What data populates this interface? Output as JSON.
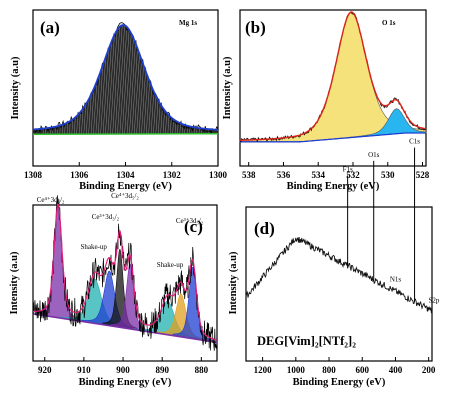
{
  "chart_data": [
    {
      "panel_label": "(a)",
      "type": "line",
      "title": "Mg 1s",
      "xlabel": "Binding Energy (eV)",
      "ylabel": "Intensity (a.u)",
      "xlim": [
        1308,
        1300
      ],
      "xticks": [
        1308,
        1306,
        1304,
        1302,
        1300
      ],
      "peak": {
        "center": 1304.1,
        "fwhm": 2.2,
        "fill": "#2a2a2a"
      },
      "background_color": "#2bbf2b",
      "fit_color": "#1f3fd0",
      "raw": [
        [
          1308.0,
          0.07
        ],
        [
          1307.5,
          0.09
        ],
        [
          1307.0,
          0.12
        ],
        [
          1306.6,
          0.17
        ],
        [
          1306.2,
          0.25
        ],
        [
          1305.8,
          0.37
        ],
        [
          1305.4,
          0.52
        ],
        [
          1305.0,
          0.72
        ],
        [
          1304.6,
          0.9
        ],
        [
          1304.1,
          1.0
        ],
        [
          1303.7,
          0.94
        ],
        [
          1303.3,
          0.77
        ],
        [
          1302.9,
          0.55
        ],
        [
          1302.5,
          0.35
        ],
        [
          1302.1,
          0.22
        ],
        [
          1301.6,
          0.13
        ],
        [
          1301.0,
          0.08
        ],
        [
          1300.4,
          0.06
        ],
        [
          1300.0,
          0.06
        ]
      ]
    },
    {
      "panel_label": "(b)",
      "type": "line",
      "title": "O 1s",
      "xlabel": "Binding Energy (eV)",
      "ylabel": "Intensity (a.u)",
      "xlim": [
        538.5,
        527.8
      ],
      "xticks": [
        538,
        536,
        534,
        532,
        530,
        528
      ],
      "peaks": [
        {
          "center": 532.1,
          "fwhm": 2.1,
          "height": 1.0,
          "color": "#f5e27a"
        },
        {
          "center": 529.5,
          "fwhm": 1.1,
          "height": 0.2,
          "color": "#29b6f0"
        }
      ],
      "envelope_color": "#d8261c",
      "background_color": "#1f3fd0"
    },
    {
      "panel_label": "(c)",
      "type": "line",
      "xlabel": "Binding Energy (eV)",
      "ylabel": "Intensity (a.u)",
      "xlim": [
        923,
        876
      ],
      "xticks": [
        920,
        910,
        900,
        890,
        880
      ],
      "baseline_color": "#7b2fa8",
      "fit_color": "#e0207a",
      "peaks": [
        {
          "center": 916.6,
          "fwhm": 2.4,
          "height": 0.86,
          "fill": "#7b2fa8"
        },
        {
          "center": 907.2,
          "fwhm": 4.0,
          "height": 0.34,
          "fill": "#20b0b0"
        },
        {
          "center": 903.5,
          "fwhm": 3.2,
          "height": 0.42,
          "fill": "#1f3fd0"
        },
        {
          "center": 900.8,
          "fwhm": 2.0,
          "height": 0.6,
          "fill": "#111111"
        },
        {
          "center": 898.2,
          "fwhm": 2.2,
          "height": 0.5,
          "fill": "#7b2fa8"
        },
        {
          "center": 888.6,
          "fwhm": 4.0,
          "height": 0.26,
          "fill": "#20b0b0"
        },
        {
          "center": 885.2,
          "fwhm": 3.0,
          "height": 0.33,
          "fill": "#e0a020"
        },
        {
          "center": 882.2,
          "fwhm": 2.3,
          "height": 0.55,
          "fill": "#1f3fd0"
        }
      ],
      "labels": [
        {
          "text": "Ce⁴⁺3d₃/₂",
          "x": 918.5,
          "y": 1.1
        },
        {
          "text": "Shake-up",
          "x": 907.5,
          "y": 0.74
        },
        {
          "text": "Ce³⁺3d₃/₂",
          "x": 904.5,
          "y": 0.97
        },
        {
          "text": "Ce⁴⁺3d₅/₂",
          "x": 899.5,
          "y": 1.13
        },
        {
          "text": "Shake-up",
          "x": 888.0,
          "y": 0.6
        },
        {
          "text": "Ce³⁺3d₅/₂",
          "x": 883.0,
          "y": 0.94
        }
      ]
    },
    {
      "panel_label": "(d)",
      "type": "line",
      "xlabel": "Binding Energy (eV)",
      "ylabel": "Intensity (a.u)",
      "xlim": [
        1300,
        180
      ],
      "xticks": [
        1200,
        1000,
        800,
        600,
        400,
        200
      ],
      "line_color": "#111111",
      "annotation_text": "DEG[Vim]₂[NTf₂]₂",
      "markers": [
        {
          "text": "F1s",
          "x": 688
        },
        {
          "text": "O1s",
          "x": 531
        },
        {
          "text": "N1s",
          "x": 400
        },
        {
          "text": "C1s",
          "x": 285
        },
        {
          "text": "S2p",
          "x": 168
        }
      ]
    }
  ]
}
